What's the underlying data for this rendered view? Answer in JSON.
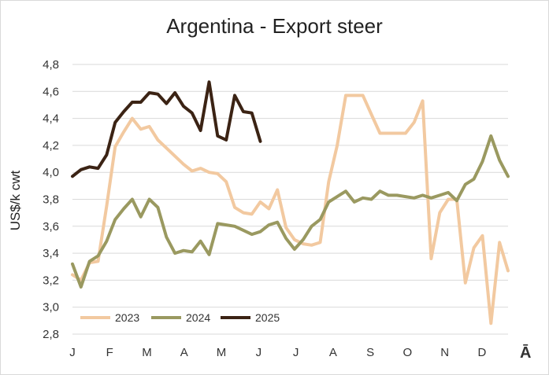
{
  "chart_data": {
    "type": "line",
    "title": "Argentina - Export steer",
    "ylabel": "US$/k cwt",
    "xlabel": "",
    "ylim": [
      2.8,
      4.8
    ],
    "yticks": [
      "2,8",
      "3,0",
      "3,2",
      "3,4",
      "3,6",
      "3,8",
      "4,0",
      "4,2",
      "4,4",
      "4,6",
      "4,8"
    ],
    "x_tick_labels": [
      "J",
      "F",
      "M",
      "A",
      "M",
      "J",
      "J",
      "A",
      "S",
      "O",
      "N",
      "D"
    ],
    "x_unit": "week",
    "grid": true,
    "legend_position": "bottom-left",
    "series": [
      {
        "name": "2023",
        "color": "#f2c9a0",
        "values": [
          3.24,
          3.2,
          3.33,
          3.34,
          3.75,
          4.19,
          4.3,
          4.4,
          4.32,
          4.34,
          4.24,
          4.18,
          4.12,
          4.06,
          4.01,
          4.03,
          4.0,
          3.99,
          3.93,
          3.74,
          3.7,
          3.69,
          3.78,
          3.73,
          3.87,
          3.59,
          3.5,
          3.47,
          3.46,
          3.48,
          3.93,
          4.2,
          4.57,
          4.57,
          4.57,
          4.43,
          4.29,
          4.29,
          4.29,
          4.29,
          4.37,
          4.53,
          3.36,
          3.7,
          3.8,
          3.8,
          3.18,
          3.44,
          3.53,
          2.88,
          3.48,
          3.27
        ]
      },
      {
        "name": "2024",
        "color": "#9a9960",
        "values": [
          3.32,
          3.15,
          3.34,
          3.38,
          3.49,
          3.65,
          3.73,
          3.8,
          3.67,
          3.8,
          3.74,
          3.52,
          3.4,
          3.42,
          3.41,
          3.49,
          3.39,
          3.62,
          3.61,
          3.6,
          3.57,
          3.54,
          3.56,
          3.61,
          3.63,
          3.51,
          3.43,
          3.5,
          3.6,
          3.65,
          3.78,
          3.82,
          3.86,
          3.78,
          3.81,
          3.8,
          3.86,
          3.83,
          3.83,
          3.82,
          3.81,
          3.83,
          3.81,
          3.83,
          3.85,
          3.79,
          3.91,
          3.95,
          4.08,
          4.27,
          4.09,
          3.97
        ]
      },
      {
        "name": "2025",
        "color": "#3b2314",
        "values": [
          3.97,
          4.02,
          4.04,
          4.03,
          4.13,
          4.37,
          4.45,
          4.52,
          4.52,
          4.59,
          4.58,
          4.51,
          4.59,
          4.49,
          4.44,
          4.31,
          4.67,
          4.27,
          4.24,
          4.57,
          4.45,
          4.44,
          4.23
        ]
      }
    ]
  },
  "brand": {
    "mark": "Ā"
  }
}
